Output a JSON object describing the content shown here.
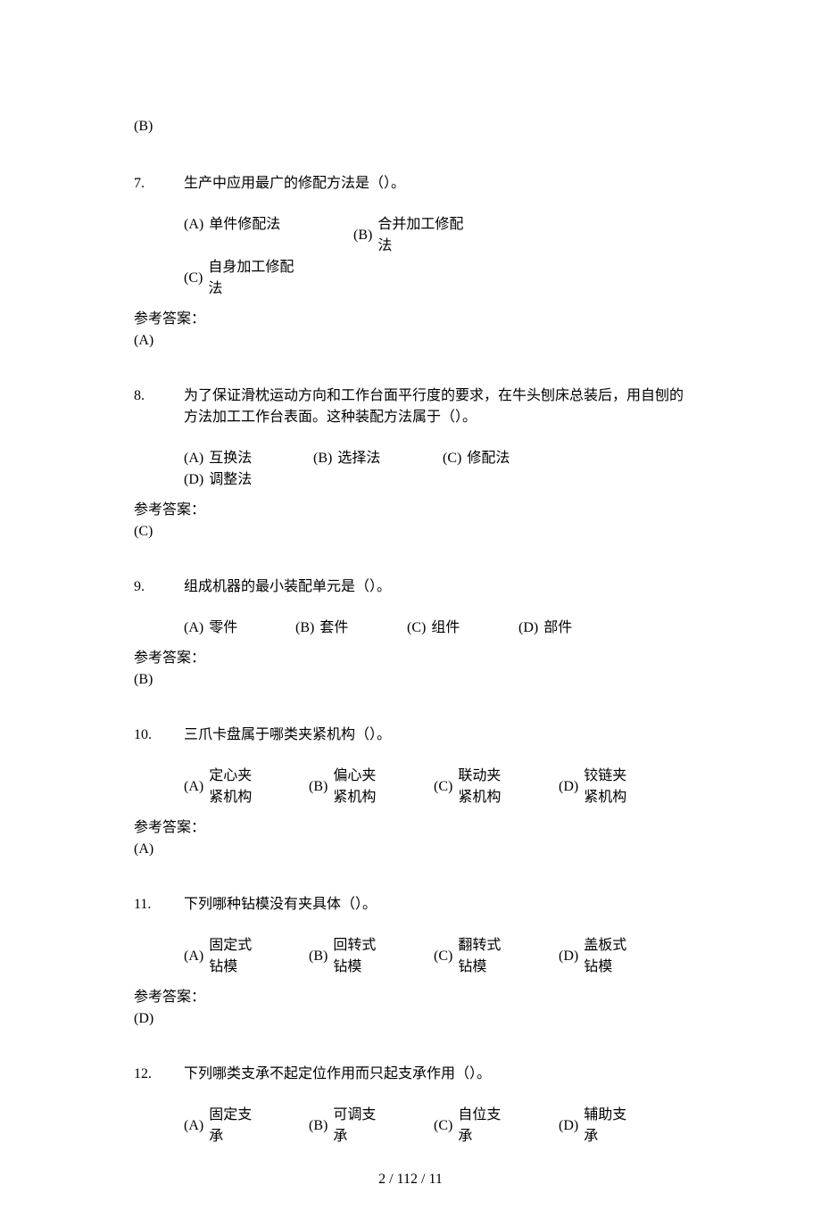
{
  "prev_answer": "(B)",
  "answer_label": "参考答案：",
  "footer": "2 / 112 / 11",
  "questions": [
    {
      "num": "7.",
      "text": "生产中应用最广的修配方法是（）。",
      "opts": [
        {
          "label": "(A)",
          "text": "单件修配法",
          "multiline": false
        },
        {
          "label": "(B)",
          "text": "合并加工修配法",
          "multiline": true
        },
        {
          "label": "(C)",
          "text": "自身加工修配法",
          "multiline": true
        }
      ],
      "layout": "three",
      "answer": "(A)"
    },
    {
      "num": "8.",
      "text": "为了保证滑枕运动方向和工作台面平行度的要求，在牛头刨床总装后，用自刨的方法加工工作台表面。这种装配方法属于（）。",
      "opts": [
        {
          "label": "(A)",
          "text": "互换法",
          "multiline": false
        },
        {
          "label": "(B)",
          "text": "选择法",
          "multiline": false
        },
        {
          "label": "(C)",
          "text": "修配法",
          "multiline": false
        },
        {
          "label": "(D)",
          "text": "调整法",
          "multiline": false
        }
      ],
      "layout": "four-short",
      "answer": "(C)"
    },
    {
      "num": "9.",
      "text": "组成机器的最小装配单元是（）。",
      "opts": [
        {
          "label": "(A)",
          "text": "零件",
          "multiline": false
        },
        {
          "label": "(B)",
          "text": "套件",
          "multiline": false
        },
        {
          "label": "(C)",
          "text": "组件",
          "multiline": false
        },
        {
          "label": "(D)",
          "text": "部件",
          "multiline": false
        }
      ],
      "layout": "four-compact",
      "answer": "(B)"
    },
    {
      "num": "10.",
      "text": "三爪卡盘属于哪类夹紧机构（）。",
      "opts": [
        {
          "label": "(A)",
          "text": "定心夹紧机构",
          "multiline": true
        },
        {
          "label": "(B)",
          "text": "偏心夹紧机构",
          "multiline": true
        },
        {
          "label": "(C)",
          "text": "联动夹紧机构",
          "multiline": true
        },
        {
          "label": "(D)",
          "text": "铰链夹紧机构",
          "multiline": true
        }
      ],
      "layout": "four",
      "answer": "(A)"
    },
    {
      "num": "11.",
      "text": "下列哪种钻模没有夹具体（）。",
      "opts": [
        {
          "label": "(A)",
          "text": "固定式钻模",
          "multiline": true
        },
        {
          "label": "(B)",
          "text": "回转式钻模",
          "multiline": true
        },
        {
          "label": "(C)",
          "text": "翻转式钻模",
          "multiline": true
        },
        {
          "label": "(D)",
          "text": "盖板式钻模",
          "multiline": true
        }
      ],
      "layout": "four",
      "answer": "(D)"
    },
    {
      "num": "12.",
      "text": "下列哪类支承不起定位作用而只起支承作用（）。",
      "opts": [
        {
          "label": "(A)",
          "text": "固定支承",
          "multiline": true
        },
        {
          "label": "(B)",
          "text": "可调支承",
          "multiline": true
        },
        {
          "label": "(C)",
          "text": "自位支承",
          "multiline": true
        },
        {
          "label": "(D)",
          "text": "辅助支承",
          "multiline": true
        }
      ],
      "layout": "four",
      "answer": null
    }
  ]
}
